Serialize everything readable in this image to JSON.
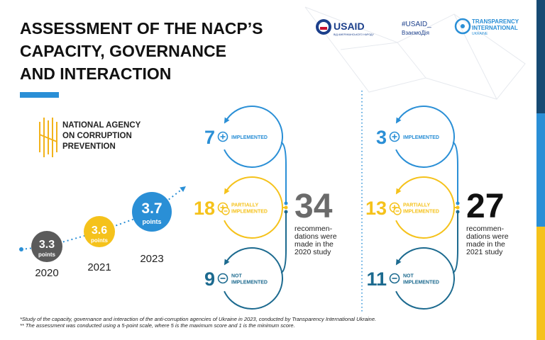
{
  "header": {
    "title": [
      "ASSESSMENT OF THE NACP’S",
      "CAPACITY, GOVERNANCE",
      "AND INTERACTION"
    ]
  },
  "logos": {
    "usaid": "USAID",
    "usaid_sub": "ВІД АМЕРИКАНСЬКОГО НАРОДУ",
    "hashtag": "#USAID_",
    "hashtag_sub": "ВзаємоДія",
    "ti": [
      "TRANSPARENCY",
      "INTERNATIONAL",
      "UKRAINE"
    ]
  },
  "agency": [
    "NATIONAL AGENCY",
    "ON CORRUPTION",
    "PREVENTION"
  ],
  "scores": [
    {
      "value": "3.3",
      "unit": "points",
      "year": "2020"
    },
    {
      "value": "3.6",
      "unit": "points",
      "year": "2021"
    },
    {
      "value": "3.7",
      "unit": "points",
      "year": "2023"
    }
  ],
  "studies": [
    {
      "total": "34",
      "caption": [
        "recommen-",
        "dations were",
        "made in the",
        "2020 study"
      ],
      "items": [
        {
          "count": "7",
          "label": [
            "IMPLEMENTED"
          ]
        },
        {
          "count": "18",
          "label": [
            "PARTIALLY",
            "IMPLEMENTED"
          ]
        },
        {
          "count": "9",
          "label": [
            "NOT",
            "IMPLEMENTED"
          ]
        }
      ]
    },
    {
      "total": "27",
      "caption": [
        "recommen-",
        "dations were",
        "made in the",
        "2021 study"
      ],
      "items": [
        {
          "count": "3",
          "label": [
            "IMPLEMENTED"
          ]
        },
        {
          "count": "13",
          "label": [
            "PARTIALLY",
            "IMPLEMENTED"
          ]
        },
        {
          "count": "11",
          "label": [
            "NOT",
            "IMPLEMENTED"
          ]
        }
      ]
    }
  ],
  "footnotes": [
    "*Study of the capacity, governance and interaction of the anti-corruption agencies of Ukraine in 2023, conducted by Transparency International Ukraine.",
    "** The assessment was conducted using a 5-point scale, where 5 is the maximum score and 1 is the minimum score."
  ]
}
